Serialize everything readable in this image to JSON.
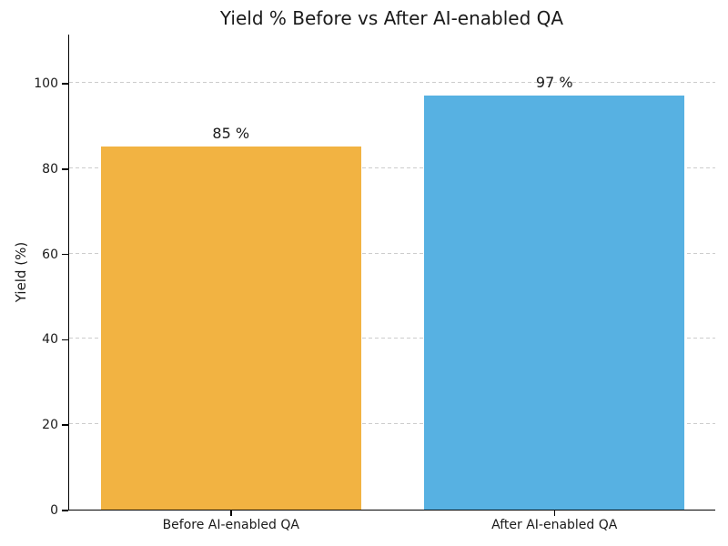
{
  "chart_data": {
    "type": "bar",
    "title": "Yield % Before vs After AI-enabled QA",
    "ylabel": "Yield (%)",
    "xlabel": "",
    "categories": [
      "Before AI-enabled QA",
      "After AI-enabled QA"
    ],
    "values": [
      85,
      97
    ],
    "value_labels": [
      "85 %",
      "97 %"
    ],
    "bar_colors": [
      "#F2B342",
      "#57B1E2"
    ],
    "yticks": [
      0,
      20,
      40,
      60,
      80,
      100
    ],
    "ylim": [
      0,
      111.5
    ],
    "grid": "horizontal-dashed",
    "grid_color": "#CCCCCC",
    "axis_color": "#000000",
    "text_color": "#1A1A1A",
    "background_color": "#FFFFFF",
    "legend": "none"
  }
}
